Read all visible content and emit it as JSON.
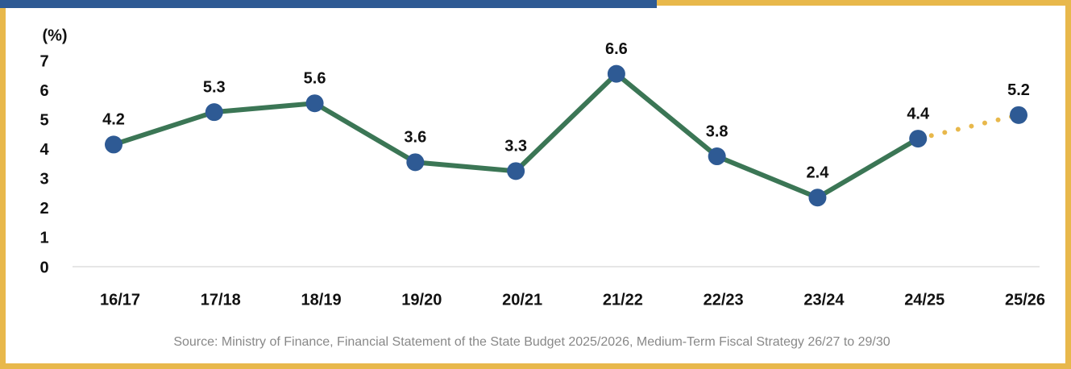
{
  "chart_data": {
    "type": "line",
    "y_unit": "(%)",
    "categories": [
      "16/17",
      "17/18",
      "18/19",
      "19/20",
      "20/21",
      "21/22",
      "22/23",
      "23/24",
      "24/25",
      "25/26"
    ],
    "series": [
      {
        "color": "#3b7655",
        "marker_color": "#2e5a94",
        "forecast_color": "#e8b84b",
        "forecast_from": 8,
        "values": [
          4.2,
          5.3,
          5.6,
          3.6,
          3.3,
          6.6,
          3.8,
          2.4,
          4.4,
          5.2
        ]
      }
    ],
    "ylim": [
      0,
      7
    ],
    "yticks": [
      0,
      1,
      2,
      3,
      4,
      5,
      6,
      7
    ],
    "source": "Source: Ministry of Finance, Financial Statement of the State Budget 2025/2026, Medium-Term Fiscal Strategy 26/27 to 29/30"
  }
}
